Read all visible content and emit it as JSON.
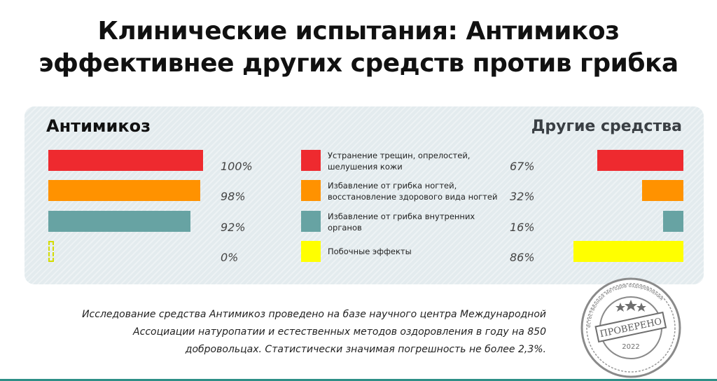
{
  "title": {
    "line1": "Клинические испытания: Антимикоз",
    "line2": "эффективнее других средств против грибка"
  },
  "colors": {
    "red": "#ee2a2f",
    "orange": "#ff9200",
    "teal": "#67a3a3",
    "yellow": "#ffff00",
    "panel": "#e3ebee"
  },
  "chart_data": {
    "type": "bar",
    "left_title": "Антимикоз",
    "right_title": "Другие средства",
    "categories": [
      "Устранение трещин, опрелостей, шелушения кожи",
      "Избавление от грибка ногтей, восстановление здорового вида ногтей",
      "Избавление от грибка внутренних органов",
      "Побочные эффекты"
    ],
    "series": [
      {
        "name": "Антимикоз",
        "values": [
          100,
          98,
          92,
          0
        ],
        "labels": [
          "100%",
          "98%",
          "92%",
          "0%"
        ]
      },
      {
        "name": "Другие средства",
        "values": [
          67,
          32,
          16,
          86
        ],
        "labels": [
          "67%",
          "32%",
          "16%",
          "86%"
        ]
      }
    ],
    "legend": [
      {
        "line1": "Устранение трещин, опрелостей,",
        "line2": "шелушения кожи",
        "color": "#ee2a2f"
      },
      {
        "line1": "Избавление от грибка ногтей,",
        "line2": "восстановление здорового вида ногтей",
        "color": "#ff9200"
      },
      {
        "line1": "Избавление от грибка внутренних",
        "line2": "органов",
        "color": "#67a3a3"
      },
      {
        "line1": "Побочные эффекты",
        "line2": "",
        "color": "#ffff00"
      }
    ],
    "xlim": [
      0,
      100
    ]
  },
  "note": {
    "line1": "Исследование средства Антимикоз проведено на базе научного центра Международной",
    "line2": "Ассоциации натуропатии и естественных методов оздоровления в году на 850",
    "line3": "добровольцах. Статистически значимая погрешность не более 2,3%."
  },
  "stamp": {
    "text": "ПРОВЕРЕНО",
    "year": "2022",
    "ring": "естественных методов оздоровления"
  }
}
